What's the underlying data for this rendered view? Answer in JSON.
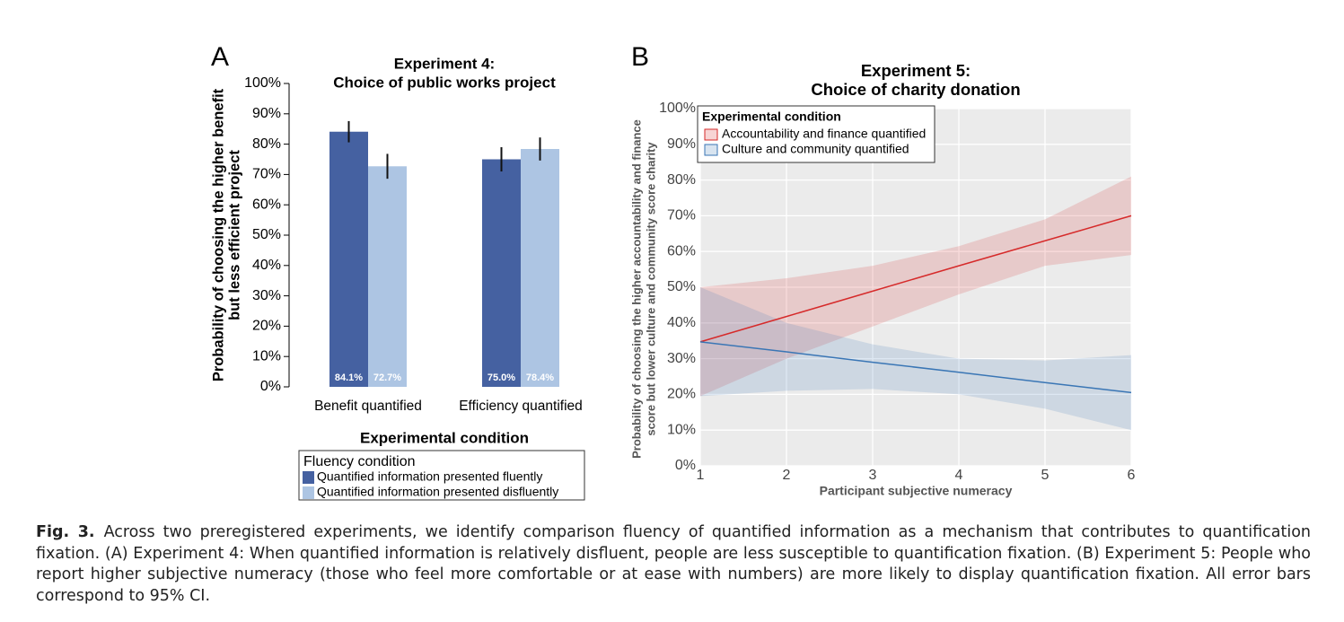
{
  "chart_data": [
    {
      "type": "bar",
      "panel": "A",
      "title": [
        "Experiment 4:",
        "Choice of public works project"
      ],
      "x_label": "Experimental condition",
      "y_label": [
        "Probability of choosing the higher benefit",
        "but less efficient project"
      ],
      "categories": [
        "Benefit quantified",
        "Efficiency quantified"
      ],
      "series": [
        {
          "name": "Quantified information presented fluently",
          "color": "#4561a1",
          "values": [
            84.1,
            75.0
          ],
          "value_labels": [
            "84.1%",
            "75.0%"
          ],
          "errors": [
            3.5,
            4.0
          ]
        },
        {
          "name": "Quantified information presented disfluently",
          "color": "#adc5e3",
          "values": [
            72.7,
            78.4
          ],
          "value_labels": [
            "72.7%",
            "78.4%"
          ],
          "errors": [
            4.1,
            3.8
          ]
        }
      ],
      "legend_title": "Fluency condition",
      "ylim": [
        0,
        100
      ],
      "yticks": [
        {
          "value": 0,
          "label": "0%"
        },
        {
          "value": 10,
          "label": "10%"
        },
        {
          "value": 20,
          "label": "20%"
        },
        {
          "value": 30,
          "label": "30%"
        },
        {
          "value": 40,
          "label": "40%"
        },
        {
          "value": 50,
          "label": "50%"
        },
        {
          "value": 60,
          "label": "60%"
        },
        {
          "value": 70,
          "label": "70%"
        },
        {
          "value": 80,
          "label": "80%"
        },
        {
          "value": 90,
          "label": "90%"
        },
        {
          "value": 100,
          "label": "100%"
        }
      ],
      "grid": false
    },
    {
      "type": "line",
      "panel": "B",
      "title": [
        "Experiment 5:",
        "Choice of charity donation"
      ],
      "x_label": "Participant subjective numeracy",
      "y_label": [
        "Probability of choosing the higher accountability and finance",
        "score  but lower culture and community score charity"
      ],
      "x": [
        1,
        2,
        3,
        4,
        5,
        6
      ],
      "series": [
        {
          "name": "Accountability and finance quantified",
          "color": "#d62a2a",
          "values": [
            34.7,
            41.8,
            48.9,
            56.0,
            63.0,
            70.0
          ],
          "lower": [
            19.5,
            30,
            39,
            48,
            56,
            59
          ],
          "upper": [
            50,
            52.5,
            56,
            61.5,
            69,
            81
          ]
        },
        {
          "name": "Culture and community quantified",
          "color": "#3a76b5",
          "values": [
            34.7,
            31.9,
            29.0,
            26.2,
            23.3,
            20.5
          ],
          "lower": [
            19.5,
            21,
            21.5,
            20,
            16,
            10
          ],
          "upper": [
            50,
            40,
            34,
            30,
            29.5,
            31
          ]
        }
      ],
      "legend_title": "Experimental condition",
      "xlim": [
        1,
        6
      ],
      "xticks": [
        1,
        2,
        3,
        4,
        5,
        6
      ],
      "ylim": [
        0,
        100
      ],
      "yticks": [
        {
          "value": 0,
          "label": "0%"
        },
        {
          "value": 10,
          "label": "10%"
        },
        {
          "value": 20,
          "label": "20%"
        },
        {
          "value": 30,
          "label": "30%"
        },
        {
          "value": 40,
          "label": "40%"
        },
        {
          "value": 50,
          "label": "50%"
        },
        {
          "value": 60,
          "label": "60%"
        },
        {
          "value": 70,
          "label": "70%"
        },
        {
          "value": 80,
          "label": "80%"
        },
        {
          "value": 90,
          "label": "90%"
        },
        {
          "value": 100,
          "label": "100%"
        }
      ],
      "grid": true
    }
  ],
  "caption": {
    "label": "Fig. 3.",
    "text": "Across two preregistered experiments, we identify comparison fluency of quantified information as a mechanism that contributes to quantification fixation. (A) Experiment 4: When quantified information is relatively disfluent, people are less susceptible to quantification fixation. (B) Experiment 5: People who report higher subjective numeracy (those who feel more comfortable or at ease with numbers) are more likely to display quantification fixation. All error bars correspond to 95% CI."
  }
}
